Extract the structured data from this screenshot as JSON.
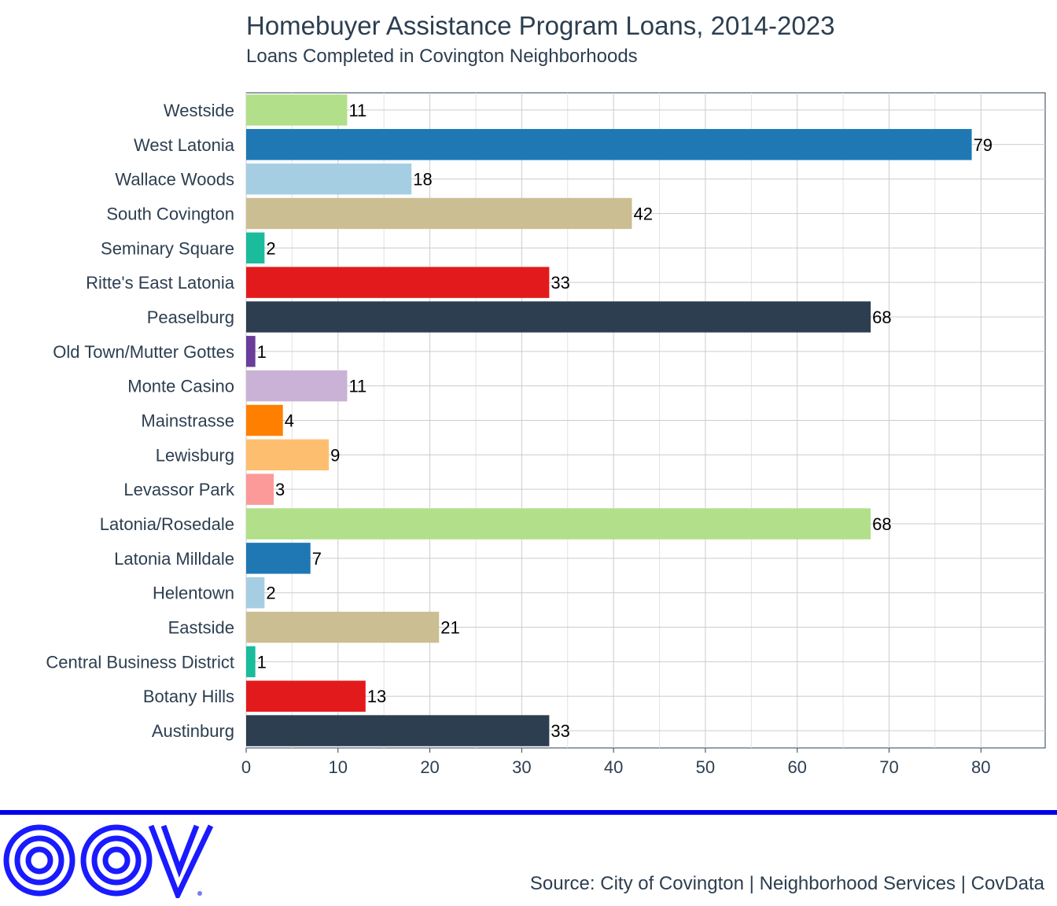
{
  "chart_data": {
    "type": "bar",
    "orientation": "horizontal",
    "title": "Homebuyer Assistance Program Loans, 2014-2023",
    "subtitle": "Loans Completed in Covington Neighborhoods",
    "xlabel": "",
    "ylabel": "",
    "xlim": [
      0,
      87
    ],
    "x_ticks": [
      0,
      10,
      20,
      30,
      40,
      50,
      60,
      70,
      80
    ],
    "grid": true,
    "legend": "none",
    "categories": [
      "Westside",
      "West Latonia",
      "Wallace Woods",
      "South Covington",
      "Seminary Square",
      "Ritte's East Latonia",
      "Peaselburg",
      "Old Town/Mutter Gottes",
      "Monte Casino",
      "Mainstrasse",
      "Lewisburg",
      "Levassor Park",
      "Latonia/Rosedale",
      "Latonia Milldale",
      "Helentown",
      "Eastside",
      "Central Business District",
      "Botany Hills",
      "Austinburg"
    ],
    "values": [
      11,
      79,
      18,
      42,
      2,
      33,
      68,
      1,
      11,
      4,
      9,
      3,
      68,
      7,
      2,
      21,
      1,
      13,
      33
    ],
    "colors": [
      "#b2df8a",
      "#1f78b4",
      "#a6cee3",
      "#cbbe92",
      "#1abc9c",
      "#e31a1c",
      "#2c3e50",
      "#6a3d9a",
      "#cab2d6",
      "#ff7f00",
      "#fdbf6f",
      "#fb9a99",
      "#b2df8a",
      "#1f78b4",
      "#a6cee3",
      "#cbbe92",
      "#1abc9c",
      "#e31a1c",
      "#2c3e50"
    ]
  },
  "footer": {
    "source": "Source: City of Covington | Neighborhood Services | CovData",
    "logo_icon": "cov-logo-icon",
    "rule_color": "#0000ee",
    "logo_color": "#1a1aff"
  }
}
